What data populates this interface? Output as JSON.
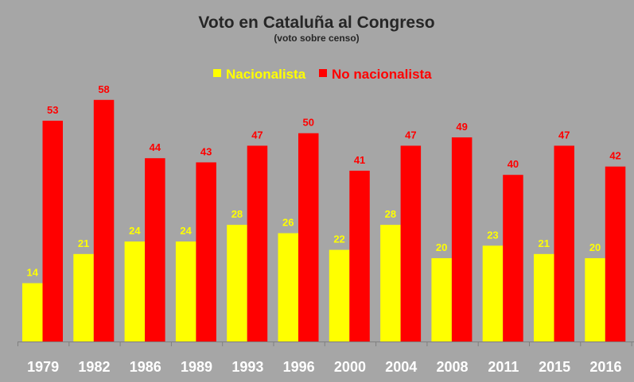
{
  "chart_data": {
    "type": "bar",
    "title": "Voto en Cataluña al Congreso",
    "subtitle": "(voto sobre censo)",
    "categories": [
      "1979",
      "1982",
      "1986",
      "1989",
      "1993",
      "1996",
      "2000",
      "2004",
      "2008",
      "2011",
      "2015",
      "2016"
    ],
    "series": [
      {
        "name": "Nacionalista",
        "color": "#ffff00",
        "values": [
          14,
          21,
          24,
          24,
          28,
          26,
          22,
          28,
          20,
          23,
          21,
          20
        ]
      },
      {
        "name": "No nacionalista",
        "color": "#ff0000",
        "values": [
          53,
          58,
          44,
          43,
          47,
          50,
          41,
          47,
          49,
          40,
          47,
          42
        ]
      }
    ],
    "ylim": [
      0,
      60
    ],
    "grid": false,
    "legend_position": "top",
    "data_labels": true,
    "background": "#a6a6a6"
  }
}
